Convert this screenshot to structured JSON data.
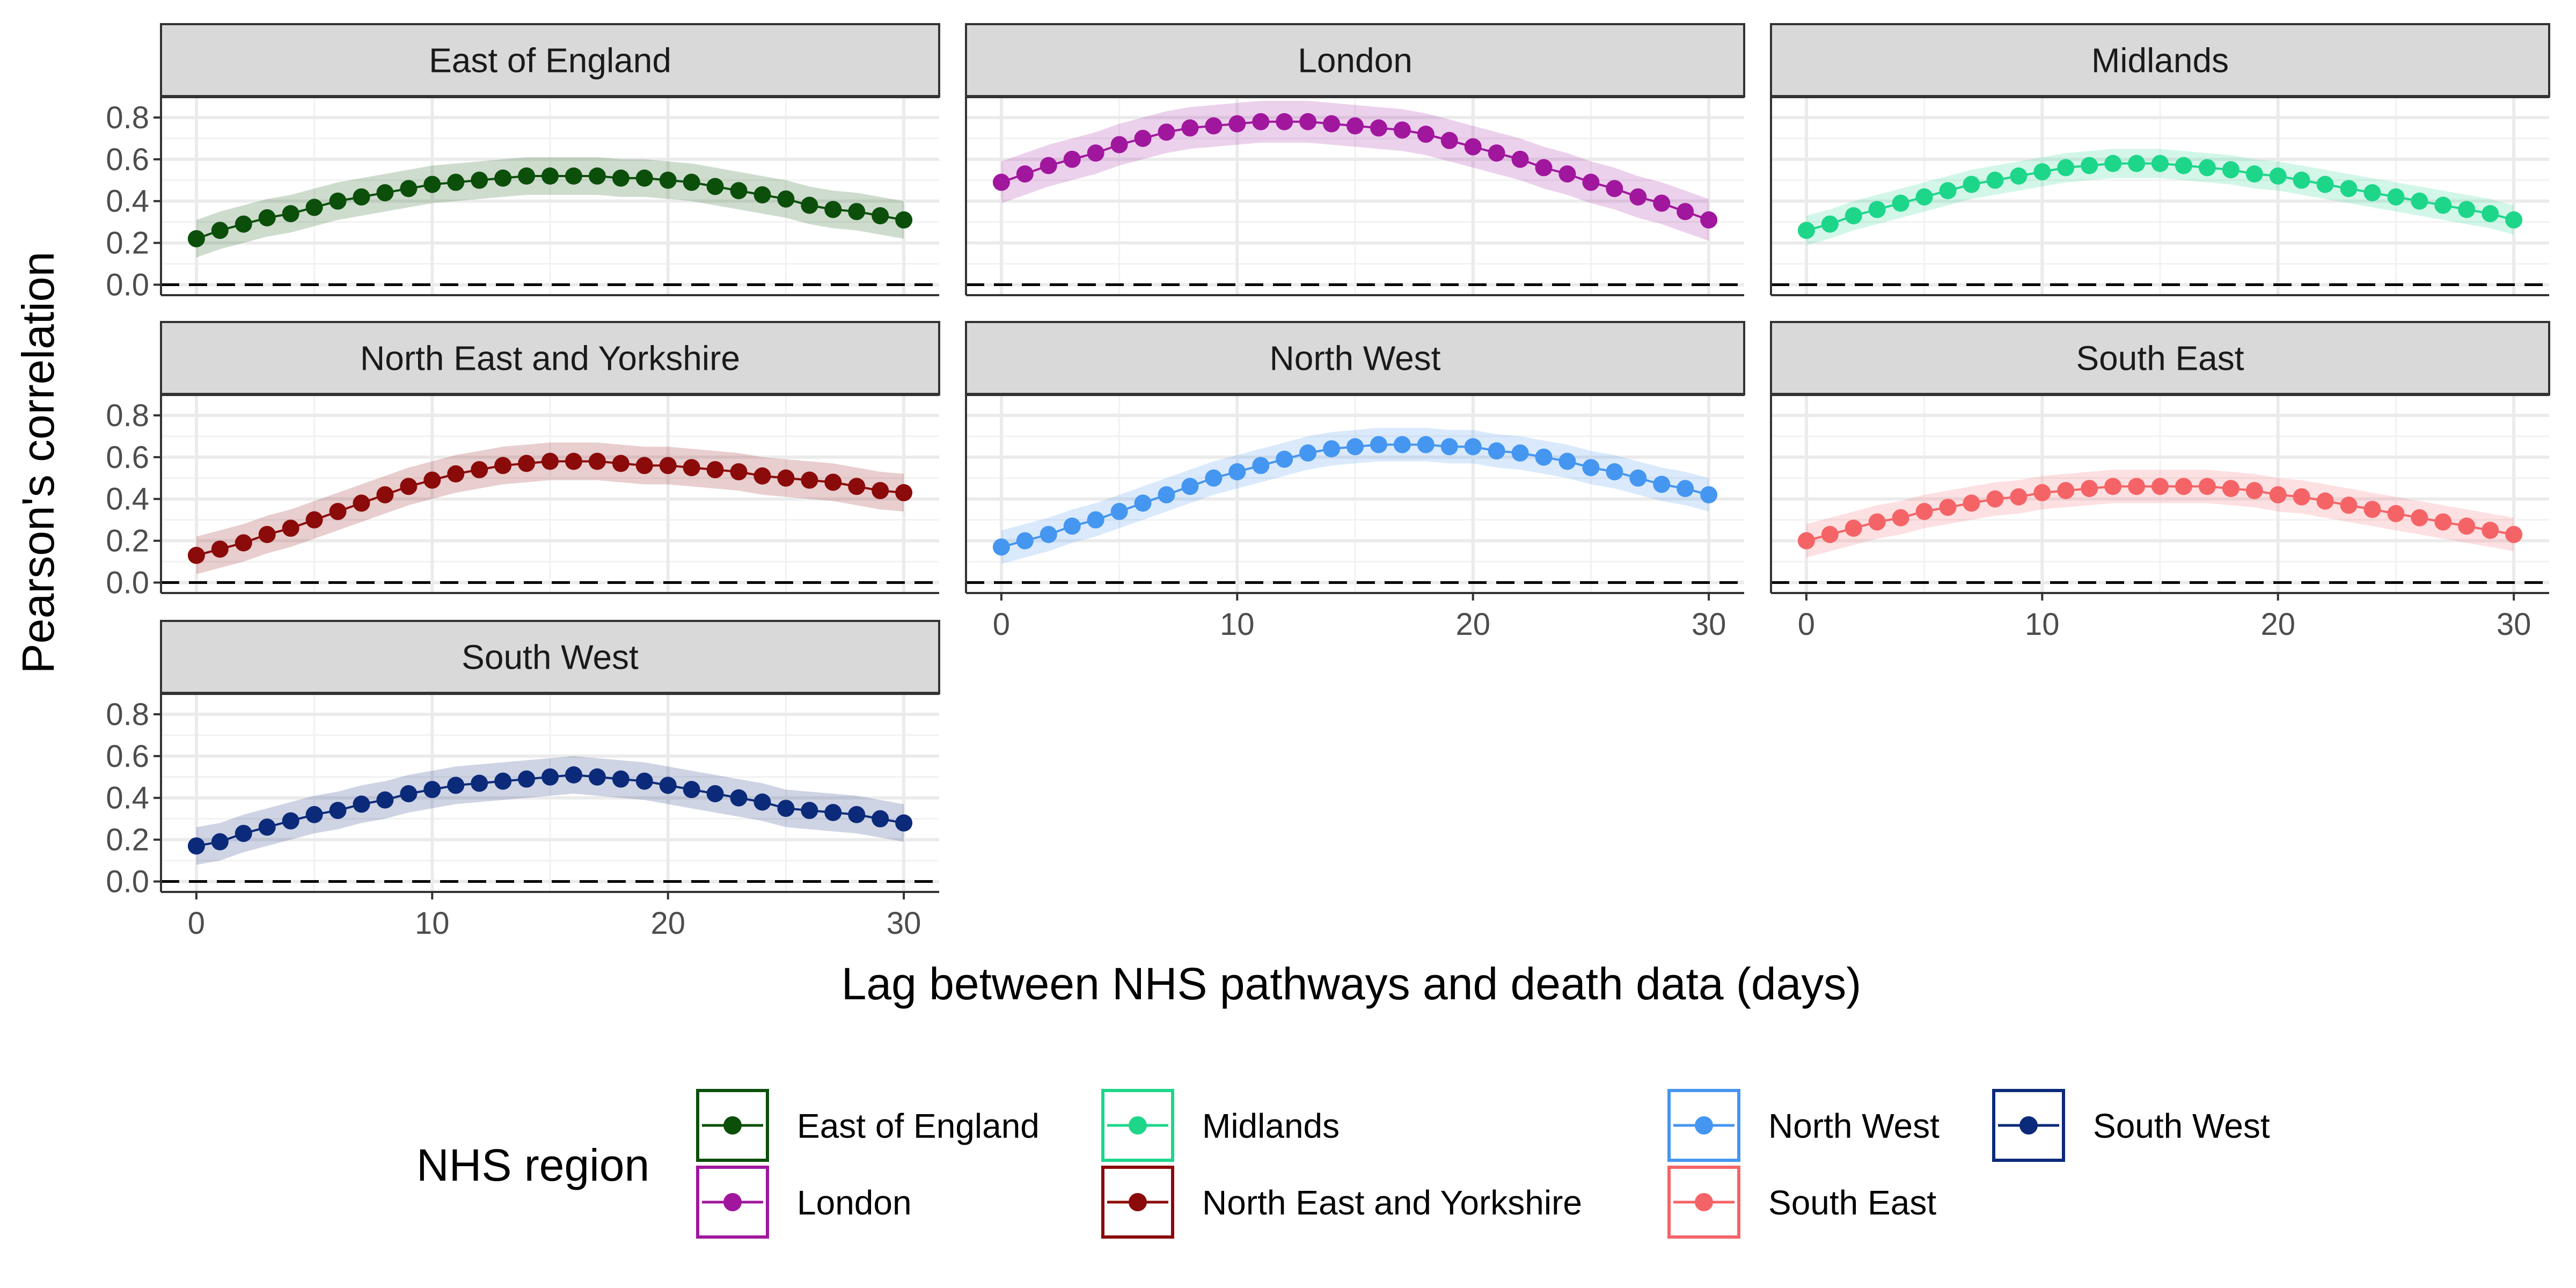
{
  "chart_data": {
    "type": "scatter",
    "ylabel": "Pearson's correlation",
    "xlabel": "Lag between NHS pathways and death data (days)",
    "legend_title": "NHS region",
    "legend_position": "bottom",
    "grid": true,
    "reference_line": {
      "y": 0,
      "style": "dashed"
    },
    "xlim": [
      -1.5,
      31.5
    ],
    "ylim": [
      -0.05,
      0.9
    ],
    "x_ticks": [
      0,
      10,
      20,
      30
    ],
    "y_ticks": [
      0.0,
      0.2,
      0.4,
      0.6,
      0.8
    ],
    "y_tick_labels": [
      "0.0",
      "0.2",
      "0.4",
      "0.6",
      "0.8"
    ],
    "x": [
      0,
      1,
      2,
      3,
      4,
      5,
      6,
      7,
      8,
      9,
      10,
      11,
      12,
      13,
      14,
      15,
      16,
      17,
      18,
      19,
      20,
      21,
      22,
      23,
      24,
      25,
      26,
      27,
      28,
      29,
      30
    ],
    "series": [
      {
        "name": "East of England",
        "color": "#0B4F0B",
        "ci_halfwidth": 0.09,
        "values": [
          0.22,
          0.26,
          0.29,
          0.32,
          0.34,
          0.37,
          0.4,
          0.42,
          0.44,
          0.46,
          0.48,
          0.49,
          0.5,
          0.51,
          0.52,
          0.52,
          0.52,
          0.52,
          0.51,
          0.51,
          0.5,
          0.49,
          0.47,
          0.45,
          0.43,
          0.41,
          0.38,
          0.36,
          0.35,
          0.33,
          0.31
        ]
      },
      {
        "name": "London",
        "color": "#A0179E",
        "ci_halfwidth": 0.1,
        "values": [
          0.49,
          0.53,
          0.57,
          0.6,
          0.63,
          0.67,
          0.7,
          0.73,
          0.75,
          0.76,
          0.77,
          0.78,
          0.78,
          0.78,
          0.77,
          0.76,
          0.75,
          0.74,
          0.72,
          0.69,
          0.66,
          0.63,
          0.6,
          0.56,
          0.53,
          0.49,
          0.46,
          0.42,
          0.39,
          0.35,
          0.31
        ]
      },
      {
        "name": "Midlands",
        "color": "#1ED68A",
        "ci_halfwidth": 0.07,
        "values": [
          0.26,
          0.29,
          0.33,
          0.36,
          0.39,
          0.42,
          0.45,
          0.48,
          0.5,
          0.52,
          0.54,
          0.56,
          0.57,
          0.58,
          0.58,
          0.58,
          0.57,
          0.56,
          0.55,
          0.53,
          0.52,
          0.5,
          0.48,
          0.46,
          0.44,
          0.42,
          0.4,
          0.38,
          0.36,
          0.34,
          0.31
        ]
      },
      {
        "name": "North East and Yorkshire",
        "color": "#8B0A0A",
        "ci_halfwidth": 0.09,
        "values": [
          0.13,
          0.16,
          0.19,
          0.23,
          0.26,
          0.3,
          0.34,
          0.38,
          0.42,
          0.46,
          0.49,
          0.52,
          0.54,
          0.56,
          0.57,
          0.58,
          0.58,
          0.58,
          0.57,
          0.56,
          0.56,
          0.55,
          0.54,
          0.53,
          0.51,
          0.5,
          0.49,
          0.48,
          0.46,
          0.44,
          0.43
        ]
      },
      {
        "name": "North West",
        "color": "#4596F0",
        "ci_halfwidth": 0.08,
        "values": [
          0.17,
          0.2,
          0.23,
          0.27,
          0.3,
          0.34,
          0.38,
          0.42,
          0.46,
          0.5,
          0.53,
          0.56,
          0.59,
          0.62,
          0.64,
          0.65,
          0.66,
          0.66,
          0.66,
          0.65,
          0.65,
          0.63,
          0.62,
          0.6,
          0.58,
          0.55,
          0.53,
          0.5,
          0.47,
          0.45,
          0.42
        ]
      },
      {
        "name": "South East",
        "color": "#F46467",
        "ci_halfwidth": 0.08,
        "values": [
          0.2,
          0.23,
          0.26,
          0.29,
          0.31,
          0.34,
          0.36,
          0.38,
          0.4,
          0.41,
          0.43,
          0.44,
          0.45,
          0.46,
          0.46,
          0.46,
          0.46,
          0.46,
          0.45,
          0.44,
          0.42,
          0.41,
          0.39,
          0.37,
          0.35,
          0.33,
          0.31,
          0.29,
          0.27,
          0.25,
          0.23
        ]
      },
      {
        "name": "South West",
        "color": "#0C2A7A",
        "ci_halfwidth": 0.09,
        "values": [
          0.17,
          0.19,
          0.23,
          0.26,
          0.29,
          0.32,
          0.34,
          0.37,
          0.39,
          0.42,
          0.44,
          0.46,
          0.47,
          0.48,
          0.49,
          0.5,
          0.51,
          0.5,
          0.49,
          0.48,
          0.46,
          0.44,
          0.42,
          0.4,
          0.38,
          0.35,
          0.34,
          0.33,
          0.32,
          0.3,
          0.28
        ]
      }
    ]
  }
}
